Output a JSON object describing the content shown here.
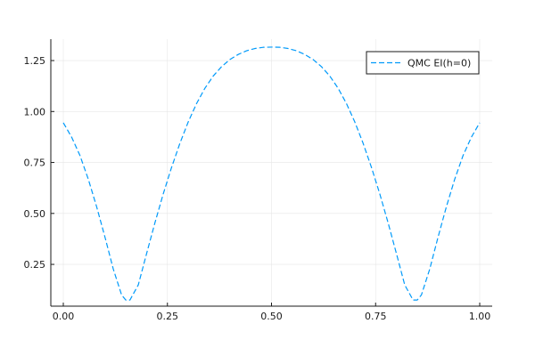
{
  "chart_data": {
    "type": "line",
    "title": "",
    "xlabel": "",
    "ylabel": "",
    "xlim": [
      -0.03,
      1.03
    ],
    "ylim": [
      0.045,
      1.355
    ],
    "x_ticks": [
      0.0,
      0.25,
      0.5,
      0.75,
      1.0
    ],
    "x_tick_labels": [
      "0.00",
      "0.25",
      "0.50",
      "0.75",
      "1.00"
    ],
    "y_ticks": [
      0.25,
      0.5,
      0.75,
      1.0,
      1.25
    ],
    "y_tick_labels": [
      "0.25",
      "0.50",
      "0.75",
      "1.00",
      "1.25"
    ],
    "grid": true,
    "legend_position": "top-right",
    "series": [
      {
        "name": "QMC EI(h=0)",
        "color": "#009AFA",
        "line_style": "dashed",
        "x": [
          0.0,
          0.02,
          0.04,
          0.06,
          0.08,
          0.1,
          0.12,
          0.14,
          0.15,
          0.16,
          0.18,
          0.2,
          0.22,
          0.24,
          0.26,
          0.28,
          0.3,
          0.32,
          0.34,
          0.36,
          0.38,
          0.4,
          0.42,
          0.44,
          0.46,
          0.48,
          0.5,
          0.52,
          0.54,
          0.56,
          0.58,
          0.6,
          0.62,
          0.64,
          0.66,
          0.68,
          0.7,
          0.72,
          0.74,
          0.76,
          0.78,
          0.8,
          0.82,
          0.84,
          0.85,
          0.86,
          0.88,
          0.9,
          0.92,
          0.94,
          0.96,
          0.98,
          1.0
        ],
        "y": [
          0.945,
          0.874,
          0.784,
          0.668,
          0.533,
          0.384,
          0.227,
          0.1,
          0.075,
          0.075,
          0.149,
          0.303,
          0.454,
          0.596,
          0.726,
          0.844,
          0.949,
          1.039,
          1.114,
          1.174,
          1.22,
          1.255,
          1.28,
          1.298,
          1.309,
          1.315,
          1.316,
          1.315,
          1.309,
          1.298,
          1.28,
          1.255,
          1.22,
          1.174,
          1.114,
          1.039,
          0.949,
          0.844,
          0.726,
          0.596,
          0.454,
          0.303,
          0.149,
          0.075,
          0.075,
          0.1,
          0.227,
          0.384,
          0.533,
          0.668,
          0.784,
          0.874,
          0.945
        ]
      }
    ]
  }
}
